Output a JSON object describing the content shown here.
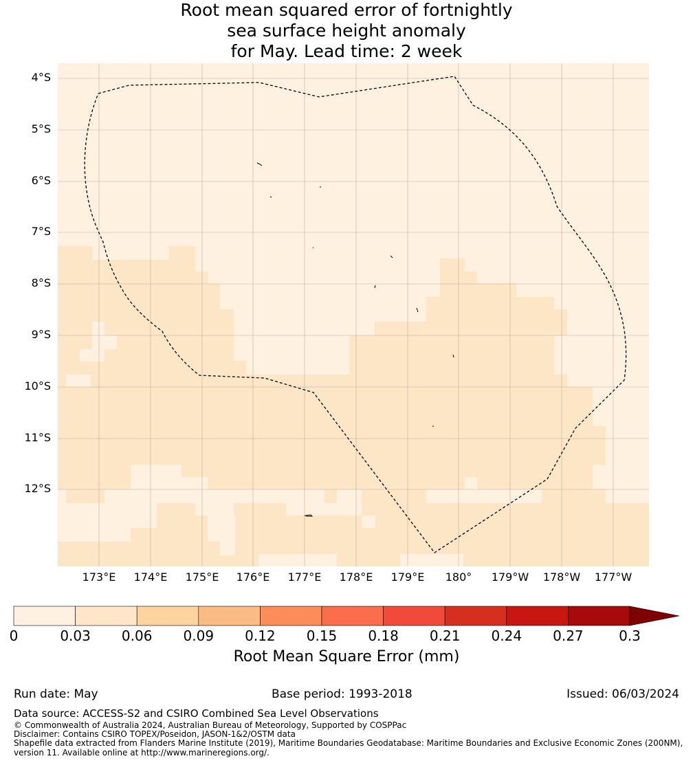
{
  "title": {
    "line1": "Root mean squared error of fortnightly",
    "line2": "sea surface height anomaly",
    "line3": "for May. Lead time: 2 week"
  },
  "map": {
    "lat_labels": [
      "4°S",
      "5°S",
      "6°S",
      "7°S",
      "8°S",
      "9°S",
      "10°S",
      "11°S",
      "12°S"
    ],
    "lon_labels": [
      "173°E",
      "174°E",
      "175°E",
      "176°E",
      "177°E",
      "178°E",
      "179°E",
      "180°",
      "179°W",
      "178°W",
      "177°W"
    ],
    "field_colors": {
      "light": "#fef1df",
      "mid": "#fde6c6"
    },
    "boundary": "dashed black maritime boundary (EEZ)"
  },
  "colorbar": {
    "ticks": [
      "0",
      "0.03",
      "0.06",
      "0.09",
      "0.12",
      "0.15",
      "0.18",
      "0.21",
      "0.24",
      "0.27",
      "0.3"
    ],
    "colors": [
      "#fff1e1",
      "#fee6c8",
      "#fdd49e",
      "#fdbb84",
      "#fc8d59",
      "#fc6d4c",
      "#ef4a3a",
      "#d62f1f",
      "#c81711",
      "#a80a0a"
    ],
    "extend_color": "#7f0000",
    "label": "Root Mean Square Error (mm)"
  },
  "footer": {
    "run_date": "Run date: May",
    "base_period": "Base period: 1993-2018",
    "issued": "Issued: 06/03/2024",
    "data_source": "Data source: ACCESS-S2 and CSIRO Combined Sea Level Observations",
    "copyright": "© Commonwealth of Australia 2024, Australian Bureau of Meteorology, Supported by COSPPac",
    "disclaimer": "Disclaimer: Contains CSIRO TOPEX/Poseidon, JASON-1&2/OSTM data",
    "shapefile1": "Shapefile data extracted from Flanders Marine Institute (2019), Maritime Boundaries Geodatabase: Maritime Boundaries and Exclusive Economic Zones (200NM),",
    "shapefile2": "version 11. Available online at http://www.marineregions.org/."
  }
}
